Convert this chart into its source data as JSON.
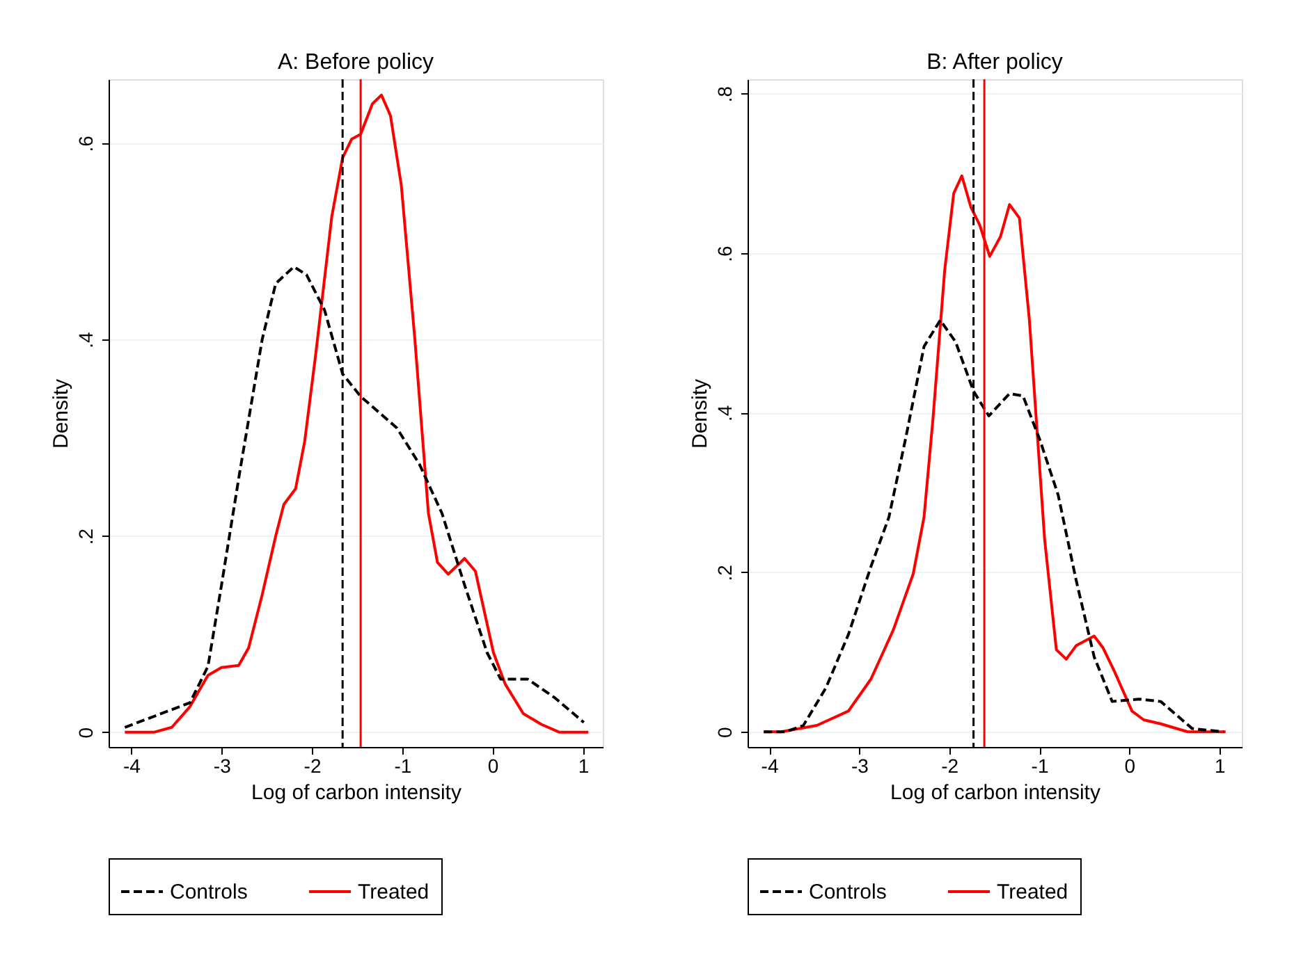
{
  "chart_data": [
    {
      "type": "line",
      "title": "A: Before policy",
      "xlabel": "Log of carbon intensity",
      "ylabel": "Density",
      "xlim": [
        -4.25,
        1.22
      ],
      "xticks": [
        -4,
        -3,
        -2,
        -1,
        0,
        1
      ],
      "ylim": [
        -0.015,
        0.665
      ],
      "yticks": [
        0,
        {
          "value": 0.2,
          "label": ".2"
        },
        {
          "value": 0.4,
          "label": ".4"
        },
        {
          "value": 0.6,
          "label": ".6"
        }
      ],
      "grid": "y",
      "legend": "bottom",
      "marker": "none",
      "series": [
        {
          "name": "Controls",
          "color": "#000000",
          "line_style": "dashed",
          "x": [
            -4.07,
            -3.35,
            -3.15,
            -3.0,
            -2.8,
            -2.55,
            -2.4,
            -2.2,
            -2.06,
            -1.86,
            -1.66,
            -1.46,
            -1.21,
            -1.06,
            -0.81,
            -0.56,
            -0.31,
            -0.06,
            0.09,
            0.39,
            0.69,
            1.01
          ],
          "values": [
            0.005,
            0.03,
            0.067,
            0.15,
            0.264,
            0.4,
            0.457,
            0.474,
            0.466,
            0.43,
            0.365,
            0.342,
            0.322,
            0.31,
            0.273,
            0.223,
            0.15,
            0.081,
            0.054,
            0.054,
            0.035,
            0.01
          ]
        },
        {
          "name": "Treated",
          "color": "#ff0000",
          "line_style": "solid",
          "x": [
            -4.07,
            -3.75,
            -3.55,
            -3.35,
            -3.15,
            -3.0,
            -2.81,
            -2.7,
            -2.55,
            -2.4,
            -2.31,
            -2.18,
            -2.08,
            -1.96,
            -1.78,
            -1.66,
            -1.56,
            -1.46,
            -1.33,
            -1.23,
            -1.13,
            -1.01,
            -0.86,
            -0.71,
            -0.61,
            -0.49,
            -0.31,
            -0.19,
            0.01,
            0.14,
            0.34,
            0.54,
            0.74,
            1.06
          ],
          "values": [
            0,
            0,
            0.005,
            0.026,
            0.058,
            0.066,
            0.068,
            0.086,
            0.14,
            0.2,
            0.232,
            0.248,
            0.296,
            0.383,
            0.525,
            0.585,
            0.604,
            0.609,
            0.64,
            0.649,
            0.628,
            0.557,
            0.4,
            0.223,
            0.173,
            0.161,
            0.177,
            0.164,
            0.081,
            0.049,
            0.019,
            0.008,
            0,
            0
          ]
        }
      ],
      "ref_lines": [
        {
          "axis": "x",
          "value": -1.66,
          "color": "#000000",
          "line_style": "dashed"
        },
        {
          "axis": "x",
          "value": -1.46,
          "color": "#ff0000",
          "line_style": "solid"
        }
      ]
    },
    {
      "type": "line",
      "title": "B: After policy",
      "xlabel": "Log of carbon intensity",
      "ylabel": "Density",
      "xlim": [
        -4.24,
        1.25
      ],
      "xticks": [
        -4,
        -3,
        -2,
        -1,
        0,
        1
      ],
      "ylim": [
        -0.019,
        0.818
      ],
      "yticks": [
        0,
        {
          "value": 0.2,
          "label": ".2"
        },
        {
          "value": 0.4,
          "label": ".4"
        },
        {
          "value": 0.6,
          "label": ".6"
        },
        {
          "value": 0.8,
          "label": ".8"
        }
      ],
      "grid": "y",
      "legend": "bottom",
      "marker": "none",
      "series": [
        {
          "name": "Controls",
          "color": "#000000",
          "line_style": "dashed",
          "x": [
            -4.06,
            -3.82,
            -3.62,
            -3.37,
            -3.12,
            -2.87,
            -2.67,
            -2.48,
            -2.28,
            -2.1,
            -1.93,
            -1.73,
            -1.56,
            -1.33,
            -1.18,
            -0.99,
            -0.79,
            -0.59,
            -0.39,
            -0.19,
            0.11,
            0.35,
            0.7,
            1.05
          ],
          "values": [
            0,
            0,
            0.008,
            0.055,
            0.122,
            0.207,
            0.269,
            0.37,
            0.483,
            0.516,
            0.489,
            0.427,
            0.396,
            0.424,
            0.421,
            0.365,
            0.297,
            0.19,
            0.094,
            0.038,
            0.041,
            0.038,
            0.004,
            0
          ]
        },
        {
          "name": "Treated",
          "color": "#ff0000",
          "line_style": "solid",
          "x": [
            -4.06,
            -3.87,
            -3.47,
            -3.12,
            -2.87,
            -2.62,
            -2.4,
            -2.28,
            -2.18,
            -2.05,
            -1.95,
            -1.86,
            -1.76,
            -1.66,
            -1.55,
            -1.43,
            -1.33,
            -1.22,
            -1.11,
            -0.94,
            -0.81,
            -0.7,
            -0.59,
            -0.39,
            -0.29,
            -0.17,
            0.03,
            0.16,
            0.35,
            0.65,
            1.07
          ],
          "values": [
            0,
            0,
            0.008,
            0.026,
            0.066,
            0.128,
            0.198,
            0.269,
            0.393,
            0.579,
            0.675,
            0.697,
            0.658,
            0.635,
            0.596,
            0.621,
            0.661,
            0.644,
            0.517,
            0.241,
            0.103,
            0.091,
            0.108,
            0.12,
            0.105,
            0.077,
            0.026,
            0.015,
            0.01,
            0,
            0
          ]
        }
      ],
      "ref_lines": [
        {
          "axis": "x",
          "value": -1.73,
          "color": "#000000",
          "line_style": "dashed"
        },
        {
          "axis": "x",
          "value": -1.61,
          "color": "#ff0000",
          "line_style": "solid"
        }
      ]
    }
  ]
}
